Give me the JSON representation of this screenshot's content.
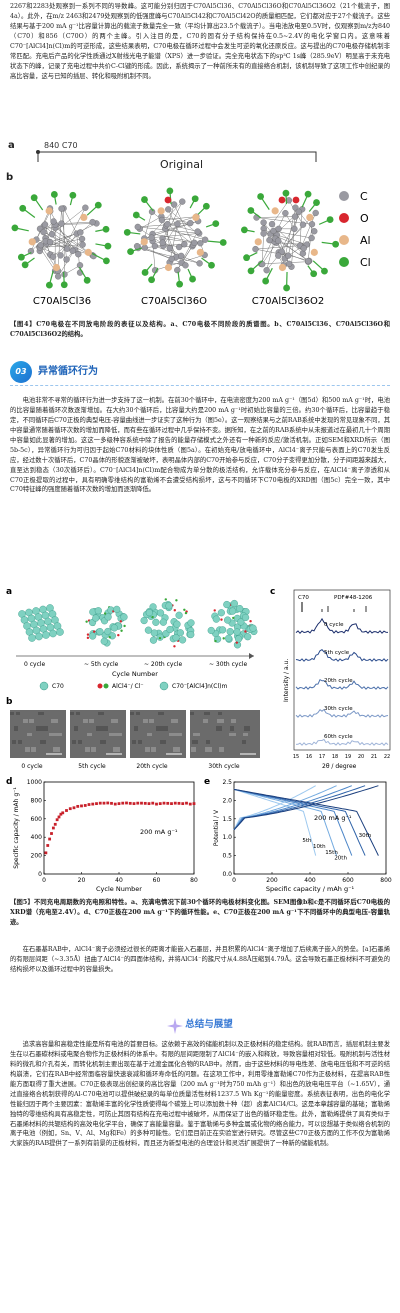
{
  "intro_text": "2267和2283处观察到一系列不同的导数峰。这可能分别归因于C70Al5Cl36、C70Al5Cl36O和C70Al5Cl36O2（21个载流子，图4a）。此外，在m/z 2463和2479处观察到的低强度峰与C70Al5Cl42和C70Al5Cl42O的质量相匹配，它们都对应于27个载流子。这些结果与基于200 mA g⁻¹比容量计算出的载流子数量完全一致（平均计算出23.5个载流子）。当电池放电至0.5V时，仅观察到m/z为840（C70）和856（C70O）的两个主峰。引入注目的是，C70的固有分子结构保持在0.5~2.4V的电化学窗口内。这意味着C70⁻[AlCl4]n(Cl)m的可逆形成，这些结果表明，C70电极在循环过程中会发生可逆的氧化还原反应。这与提出的C70电极存储机制非常匹配。充电后产品的化学性质通过X射线光电子能谱（XPS）进一步验证。完全充电状态下的sp³C 1s峰（285.9eV）明显高于未充电状态下的峰，记录了充电过程中共价C-Cl键的形成。因此，系统揭示了一种前所未有的直接络合机制，该机制导致了这项工作中创纪录的高比容量，这与已知的插层、转化和吸附机制不同。",
  "fig4": {
    "panel_label": "a",
    "peak_label": "840  C70",
    "header_label": "Original",
    "legend": [
      "C",
      "O",
      "Al",
      "Cl"
    ],
    "molecules": [
      "C70Al5Cl36",
      "C70Al5Cl36O",
      "C70Al5Cl36O2"
    ],
    "caption_head": "【图4】C70电极在不同放电阶段的表征以及结构。a、C70电极不同阶段的质谱图。b、C70Al5Cl36、C70Al5Cl36O和C70Al5Cl36O2的结构。"
  },
  "section3": {
    "number": "03",
    "title": "异常循环行为",
    "text": "电池非常不寻常的循环行为进一步支持了这一机制。在前30个循环中，在电流密度为200 mA g⁻¹（图5d）和500 mA g⁻¹时，电池的比容量随着循环次数逐渐增加。在大约30个循环后，比容量大约是200 mA g⁻¹时初始比容量的三倍。约30个循环后，比容量趋于稳定，不同循环后C70正极的典型电压-容量曲线进一步证实了这种行为（图5e）。这一观察结果与之前RAB系统中发现的常见现象不同，其中容量通常随着循环次数的增加而降低，而有些在循环过程中几乎保持不变。据所知，在之前的RAB系统中从未报道过在最初几十个周期中容量如此显著的增加。这这一多级种容系统中除了报告的能量存储模式之外还有一种新的反应/激活机制。正如SEM和XRD所示（图5b-5c），异常循环行为可归因于起始C70材料的块体性质（图5a）。在初始充电/放电循环中，AlCl4⁻离子只能与表面上的C70发生反应，经过数十次循环后，C70晶体的形貌逐渐被破坏，表明晶体内部的C70开始参与反应，C70分子变得更加分散，分子间距越来越大，直至达到稳态（30次循环后）。C70⁻[AlCl4]n(Cl)m配合物成为单分散的极活结构，允许载体充分参与反应，在AlCl4⁻离子渗透和从C70正极提取的过程中，具有明确零维结构的富勒烯不会遭受结构损坏，这与不同循环下C70电极的XRD图（图5c）完全一致，其中C70特征峰的强度随着循环次数的增加而逐渐降低。"
  },
  "fig5": {
    "panel_a": {
      "label": "a",
      "stages": [
        "0 cycle",
        "~ 5th cycle",
        "~ 20th cycle",
        "~ 30th cycle"
      ],
      "axis_label": "Cycle Number",
      "legend": [
        "C70",
        "AlCl4⁻/ Cl⁻",
        "C70⁻[AlCl4]n(Cl)m"
      ]
    },
    "panel_b": {
      "label": "b",
      "images": [
        "0 cycle",
        "5th cycle",
        "20th cycle",
        "30th cycle"
      ],
      "scale": "2 μm"
    },
    "panel_c": {
      "label": "c",
      "ref": "PDF#48-1206",
      "c70": "C70",
      "curves": [
        "0 cycle",
        "5th cycle",
        "20th cycle",
        "30th cycle",
        "60th cycle"
      ],
      "ylabel": "Intensity / a.u.",
      "xlabel": "2θ / degree",
      "xticks": [
        "15",
        "16",
        "17",
        "18",
        "19",
        "20",
        "21",
        "22"
      ]
    },
    "caption_head": "【图5】不同充电周期数的充电照和特性。a、充满电情况下前30个循环的电极材料变化图。SEM图像b和c是不同循环后C70电极的XRD谱（充电至2.4V）。d、C70正极在200 mA g⁻¹下的循环性能。e、C70正极在200 mA g⁻¹下不同循环中的典型电压-容量轨迹。"
  },
  "chart_data": [
    {
      "type": "scatter",
      "panel": "d",
      "xlabel": "Cycle Number",
      "ylabel": "Specific capacity / mAh g⁻¹",
      "xlim": [
        0,
        80
      ],
      "ylim": [
        0,
        1000
      ],
      "xticks": [
        0,
        20,
        40,
        60,
        80
      ],
      "yticks": [
        0,
        200,
        400,
        600,
        800,
        1000
      ],
      "annotation": "200 mA g⁻¹",
      "x": [
        1,
        2,
        3,
        4,
        5,
        6,
        7,
        8,
        9,
        10,
        12,
        14,
        16,
        18,
        20,
        22,
        24,
        26,
        28,
        30,
        32,
        34,
        36,
        38,
        40,
        42,
        44,
        46,
        48,
        50,
        52,
        54,
        56,
        58,
        60,
        62,
        64,
        66,
        68,
        70,
        72,
        74,
        76,
        78,
        80
      ],
      "y": [
        230,
        310,
        380,
        440,
        500,
        540,
        590,
        620,
        650,
        665,
        690,
        710,
        720,
        735,
        740,
        745,
        755,
        760,
        765,
        770,
        770,
        772,
        768,
        760,
        765,
        770,
        772,
        768,
        765,
        770,
        770,
        768,
        765,
        770,
        760,
        765,
        770,
        768,
        765,
        770,
        768,
        765,
        770,
        760,
        765
      ]
    },
    {
      "type": "line",
      "panel": "e",
      "xlabel": "Specific capacity / mAh g⁻¹",
      "ylabel": "Potential / V",
      "xlim": [
        0,
        800
      ],
      "ylim": [
        0.0,
        2.5
      ],
      "xticks": [
        0,
        200,
        400,
        600,
        800
      ],
      "yticks": [
        0.0,
        0.5,
        1.0,
        1.5,
        2.0,
        2.5
      ],
      "annotation": "200 mA g⁻¹",
      "series": [
        {
          "name": "5th",
          "capacity": 430,
          "color": "#9ec9ef"
        },
        {
          "name": "10th",
          "capacity": 540,
          "color": "#74abe0"
        },
        {
          "name": "15th",
          "capacity": 620,
          "color": "#4d86c8"
        },
        {
          "name": "20th",
          "capacity": 690,
          "color": "#2e62a8"
        },
        {
          "name": "30th",
          "capacity": 760,
          "color": "#1a3e7d"
        }
      ]
    }
  ],
  "para_after_fig5": "在石墨基RAB中，AlCl4⁻离子必须经过很长的距离才能嵌入石墨层，并且积累的AlCl4⁻离子增加了后续离子嵌入的势垒。[a]石墨烯的有限层间距（~3.35Å）扭曲了AlCl4⁻的四面体结构，并将AlCl4⁻的簇尺寸从4.88Å压缩到4.79Å。这会导致石墨正极材料不可避免的结构损坏以及循环过程中的容量损失。",
  "summary": {
    "title": "总结与展望",
    "text": "追求高容量和高稳定性能是所有电池的首要目标。这依赖于高效的储能机制以及正极材料的稳定结构。就RAB而言，插层机制主要发生在以石墨碳材料或电聚合物作为正极材料的体系中。有限的层间距限制了AlCl4⁻的嵌入和释放，导致容量相对较低。吸附机制与活性材料的微孔和介孔有关，而转化机制主要出现在基于过渡金属化合物的RAB中。然而，由于这些材料的导电性差、放电电压低和不可逆的结构崩溃，它们在RAB中经常面临容量快速衰减和循环寿命低的问题。在这项工作中，利用零维富勒烯C70作为正极材料，在提高RAB性能方面取得了重大进展。C70正极表现出创纪录的高比容量（200 mA g⁻¹时为750 mAh g⁻¹）和出色的放电电压平台（~1.65V），通过直接络合机制获得的Al-C70电池可以提供破纪录的每单位质量活性材料1237.5 Wh Kg⁻¹的能量密度。系统表征表明，出色的电化学性能归因于两个主要因素：富勒烯丰富的化学性质使得每个碳笼上可以添加数十种（超）卤素AlCl4/Cl。这是本章越容量的基础；富勒烯独特的零维结构具有高稳定性，可防止其固有结构在充电过程中被破坏，从而保证了出色的循环稳定性。此外，富勒烯提供了具有类似于石墨烯材料的共轭结构的高效电化学平台，确保了高能量容量。鉴于富勒烯与多种金属或化物的络合能力，可以设想基于类似络合机制的离子电池（例如，Sn、V、Al、Mg和Fe）的多种可能性。它们是目前正在实验室进行研究。尽管这些C70正极方面的工作不仅为富勒烯大家族的RAB提供了一系列有前景的正极材料，而且还为新型电池的合理设计和灵活扩展提供了一种新的储能机制。"
  },
  "colors": {
    "accent": "#1c62b8",
    "carbon": "#9a9aa2",
    "oxygen": "#d8262e",
    "aluminum": "#e8b78a",
    "chlorine": "#3aa83a"
  }
}
